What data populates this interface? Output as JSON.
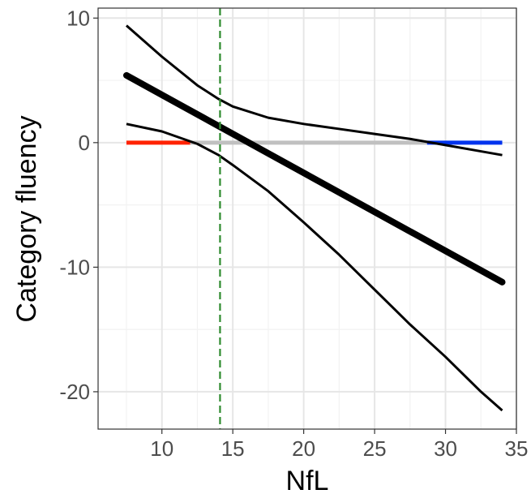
{
  "chart_data": {
    "type": "line",
    "xlabel": "NfL",
    "ylabel": "Category fluency",
    "xlim": [
      5.5,
      35
    ],
    "ylim": [
      -23,
      10.8
    ],
    "x_ticks": [
      10,
      15,
      20,
      25,
      30,
      35
    ],
    "y_ticks": [
      10,
      0,
      -10,
      -20
    ],
    "x_tick_labels": [
      "10",
      "15",
      "20",
      "25",
      "30",
      "35"
    ],
    "y_tick_labels": [
      "10",
      "0",
      "-10",
      "-20"
    ],
    "grid": true,
    "x_minor_ticks": [
      7.5,
      12.5,
      17.5,
      22.5,
      27.5,
      32.5
    ],
    "y_minor_ticks": [
      5,
      -5,
      -15
    ],
    "series": [
      {
        "role": "estimate",
        "color": "#000000",
        "x": [
          7.5,
          34
        ],
        "y": [
          5.4,
          -11.2
        ]
      },
      {
        "role": "upper-ci",
        "color": "#000000",
        "x": [
          7.5,
          10,
          12.5,
          14,
          15,
          17.5,
          20,
          22.5,
          25,
          27.5,
          30,
          32.5,
          34
        ],
        "y": [
          9.4,
          6.9,
          4.6,
          3.5,
          2.9,
          2.0,
          1.5,
          1.1,
          0.7,
          0.3,
          -0.2,
          -0.7,
          -1.0
        ]
      },
      {
        "role": "lower-ci",
        "color": "#000000",
        "x": [
          7.5,
          10,
          12.5,
          14,
          15,
          17.5,
          20,
          22.5,
          25,
          27.5,
          30,
          32.5,
          34
        ],
        "y": [
          1.5,
          0.9,
          -0.1,
          -1.0,
          -1.8,
          -3.9,
          -6.4,
          -9.0,
          -11.8,
          -14.6,
          -17.2,
          -20.0,
          -21.5
        ]
      },
      {
        "role": "zero-segment",
        "color": "#ff2200",
        "x": [
          7.5,
          12
        ],
        "y": [
          0,
          0
        ]
      },
      {
        "role": "zero-segment",
        "color": "#c0c0c0",
        "x": [
          12,
          28.7
        ],
        "y": [
          0,
          0
        ]
      },
      {
        "role": "zero-segment",
        "color": "#0033ee",
        "x": [
          28.7,
          34
        ],
        "y": [
          0,
          0
        ]
      }
    ],
    "vline": {
      "x": 14.1,
      "color": "#2e8b2e",
      "style": "dashed"
    }
  }
}
